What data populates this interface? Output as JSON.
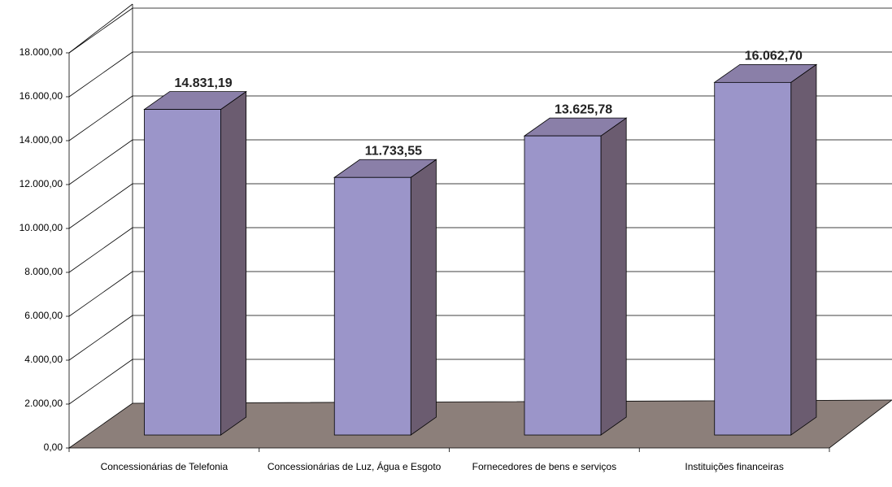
{
  "chart_data": {
    "type": "bar3d",
    "categories": [
      "Concessionárias de Telefonia",
      "Concessionárias de Luz, Água e Esgoto",
      "Fornecedores de bens e serviços",
      "Instituições financeiras"
    ],
    "values": [
      14831.19,
      11733.55,
      13625.78,
      16062.7
    ],
    "value_labels": [
      "14.831,19",
      "11.733,55",
      "13.625,78",
      "16.062,70"
    ],
    "color": "#9b95c9",
    "ylim": [
      0,
      18000
    ],
    "yticks": [
      {
        "value": 0,
        "label": "0,00"
      },
      {
        "value": 2000,
        "label": "2.000,00"
      },
      {
        "value": 4000,
        "label": "4.000,00"
      },
      {
        "value": 6000,
        "label": "6.000,00"
      },
      {
        "value": 8000,
        "label": "8.000,00"
      },
      {
        "value": 10000,
        "label": "10.000,00"
      },
      {
        "value": 12000,
        "label": "12.000,00"
      },
      {
        "value": 14000,
        "label": "14.000,00"
      },
      {
        "value": 16000,
        "label": "16.000,00"
      },
      {
        "value": 18000,
        "label": "18.000,00"
      }
    ],
    "grid": true
  }
}
